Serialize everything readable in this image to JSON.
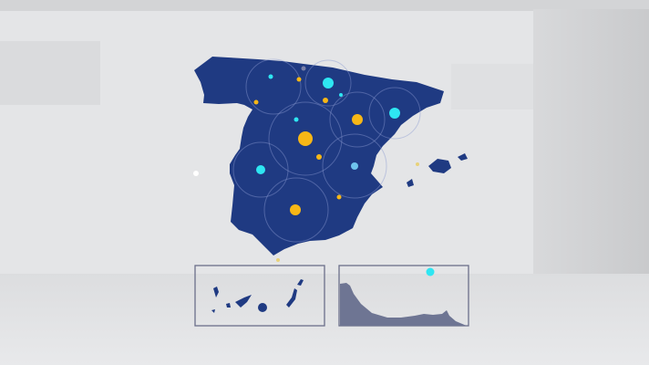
{
  "map": {
    "land_color": "#1f3a82",
    "inset_land_color": "#6e7593",
    "accent_cyan": "#2ee6f2",
    "accent_yellow": "#f7b716",
    "background": "#e4e5e7",
    "insets": [
      "canary-islands-inset",
      "north-africa-coast-inset"
    ]
  }
}
